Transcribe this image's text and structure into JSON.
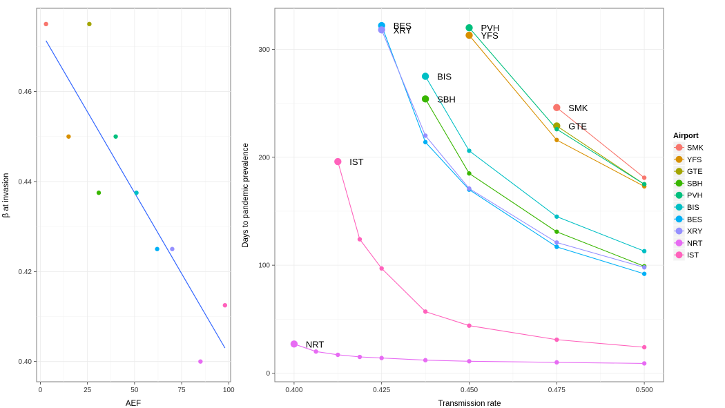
{
  "left_chart": {
    "xlabel": "AEF",
    "ylabel_symbol": "β",
    "ylabel_text": " at invasion",
    "x_ticks": [
      0,
      25,
      50,
      75,
      100
    ],
    "x_tick_labels": [
      "0",
      "25",
      "50",
      "75",
      "100"
    ],
    "y_ticks": [
      0.4,
      0.42,
      0.44,
      0.46
    ],
    "y_tick_labels": [
      "0.40",
      "0.42",
      "0.44",
      "0.46"
    ]
  },
  "right_chart": {
    "xlabel": "Transmission rate",
    "ylabel": "Days to pandemic prevalence",
    "x_ticks": [
      0.4,
      0.425,
      0.45,
      0.475,
      0.5
    ],
    "x_tick_labels": [
      "0.400",
      "0.425",
      "0.450",
      "0.475",
      "0.500"
    ],
    "y_ticks": [
      0,
      100,
      200,
      300
    ],
    "y_tick_labels": [
      "0",
      "100",
      "200",
      "300"
    ]
  },
  "legend": {
    "title": "Airport",
    "items": [
      "SMK",
      "YFS",
      "GTE",
      "SBH",
      "PVH",
      "BIS",
      "BES",
      "XRY",
      "NRT",
      "IST"
    ]
  },
  "chart_data": [
    {
      "type": "scatter",
      "title": "",
      "xlabel": "AEF",
      "ylabel": "β at invasion",
      "xlim": [
        -2,
        101
      ],
      "ylim": [
        0.3955,
        0.4785
      ],
      "points": [
        {
          "airport": "SMK",
          "x": 3,
          "y": 0.475
        },
        {
          "airport": "YFS",
          "x": 15,
          "y": 0.45
        },
        {
          "airport": "GTE",
          "x": 26,
          "y": 0.475
        },
        {
          "airport": "SBH",
          "x": 31,
          "y": 0.4375
        },
        {
          "airport": "PVH",
          "x": 40,
          "y": 0.45
        },
        {
          "airport": "BIS",
          "x": 51,
          "y": 0.4375
        },
        {
          "airport": "BES",
          "x": 62,
          "y": 0.425
        },
        {
          "airport": "XRY",
          "x": 70,
          "y": 0.425
        },
        {
          "airport": "NRT",
          "x": 85,
          "y": 0.4
        },
        {
          "airport": "IST",
          "x": 98,
          "y": 0.4125
        }
      ],
      "fit_line": {
        "x": [
          3,
          98
        ],
        "y": [
          0.4713,
          0.403
        ],
        "color": "#3366ff"
      }
    },
    {
      "type": "line",
      "title": "",
      "xlabel": "Transmission rate",
      "ylabel": "Days to pandemic prevalence",
      "xlim": [
        0.3945,
        0.5055
      ],
      "ylim": [
        -8,
        338
      ],
      "series": [
        {
          "name": "SMK",
          "color": "#f8766d",
          "x": [
            0.475,
            0.5
          ],
          "y": [
            246,
            181
          ]
        },
        {
          "name": "YFS",
          "color": "#d89000",
          "x": [
            0.45,
            0.475,
            0.5
          ],
          "y": [
            313,
            216,
            173
          ]
        },
        {
          "name": "GTE",
          "color": "#a3a500",
          "x": [
            0.475,
            0.5
          ],
          "y": [
            229,
            175
          ]
        },
        {
          "name": "SBH",
          "color": "#39b600",
          "x": [
            0.4375,
            0.45,
            0.475,
            0.5
          ],
          "y": [
            254,
            185,
            131,
            99
          ]
        },
        {
          "name": "PVH",
          "color": "#00bf7d",
          "x": [
            0.45,
            0.475,
            0.5
          ],
          "y": [
            320,
            226,
            175
          ]
        },
        {
          "name": "BIS",
          "color": "#00bfc4",
          "x": [
            0.4375,
            0.45,
            0.475,
            0.5
          ],
          "y": [
            275,
            206,
            145,
            113
          ]
        },
        {
          "name": "BES",
          "color": "#00b0f6",
          "x": [
            0.425,
            0.4375,
            0.45,
            0.475,
            0.5
          ],
          "y": [
            322,
            214,
            170,
            117,
            92
          ]
        },
        {
          "name": "XRY",
          "color": "#9590ff",
          "x": [
            0.425,
            0.4375,
            0.45,
            0.475,
            0.5
          ],
          "y": [
            318,
            220,
            171,
            121,
            98
          ]
        },
        {
          "name": "NRT",
          "color": "#e76bf3",
          "x": [
            0.4,
            0.40625,
            0.4125,
            0.41875,
            0.425,
            0.4375,
            0.45,
            0.475,
            0.5
          ],
          "y": [
            27,
            20,
            17,
            15,
            14,
            12,
            11,
            10,
            9
          ]
        },
        {
          "name": "IST",
          "color": "#ff62bc",
          "x": [
            0.4125,
            0.41875,
            0.425,
            0.4375,
            0.45,
            0.475,
            0.5
          ],
          "y": [
            196,
            124,
            97,
            57,
            44,
            31,
            24
          ]
        }
      ]
    }
  ]
}
